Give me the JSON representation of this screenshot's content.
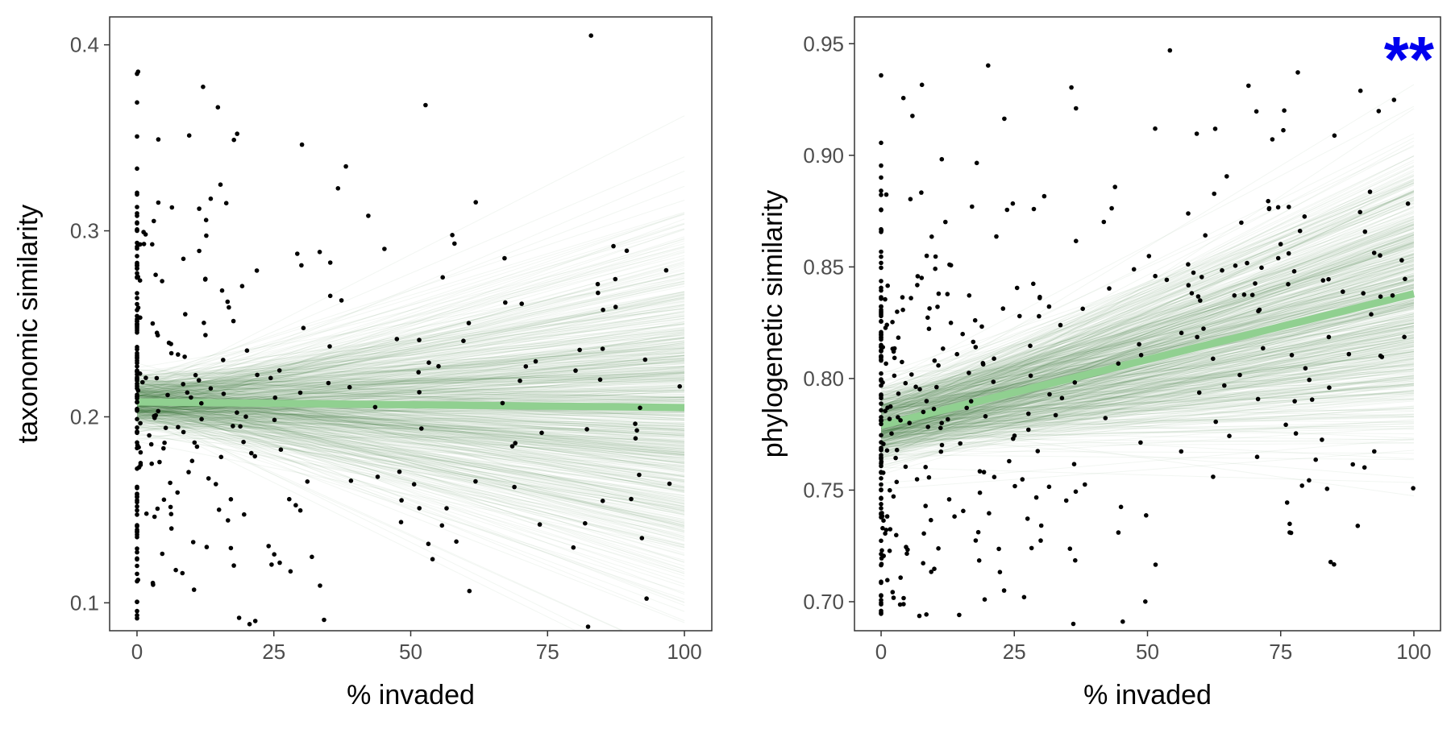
{
  "chart_data": [
    {
      "type": "scatter",
      "xlabel": "% invaded",
      "ylabel": "taxonomic similarity",
      "xlim": [
        -5,
        105
      ],
      "ylim": [
        0.085,
        0.415
      ],
      "xticks": [
        0,
        25,
        50,
        75,
        100
      ],
      "xtick_labels": [
        "0",
        "25",
        "50",
        "75",
        "100"
      ],
      "yticks": [
        0.1,
        0.2,
        0.3,
        0.4
      ],
      "ytick_labels": [
        "0.1",
        "0.2",
        "0.3",
        "0.4"
      ],
      "grid": false,
      "significance": "",
      "fit": {
        "x": [
          0,
          100
        ],
        "y": [
          0.208,
          0.205
        ],
        "color": "#90d090"
      },
      "posterior_lines": {
        "n": 700,
        "intercept_mean": 0.208,
        "intercept_sd": 0.007,
        "slope_mean": -3e-05,
        "slope_sd": 0.00045,
        "color": "#1f6b1f"
      },
      "points": {
        "n": 340,
        "seed": 17,
        "trend": [
          0.208,
          0.205
        ],
        "spread": 0.075,
        "zero_fraction": 0.28,
        "color": "#000000"
      }
    },
    {
      "type": "scatter",
      "xlabel": "% invaded",
      "ylabel": "phylogenetic similarity",
      "xlim": [
        -5,
        105
      ],
      "ylim": [
        0.687,
        0.962
      ],
      "xticks": [
        0,
        25,
        50,
        75,
        100
      ],
      "xtick_labels": [
        "0",
        "25",
        "50",
        "75",
        "100"
      ],
      "yticks": [
        0.7,
        0.75,
        0.8,
        0.85,
        0.9,
        0.95
      ],
      "ytick_labels": [
        "0.70",
        "0.75",
        "0.80",
        "0.85",
        "0.90",
        "0.95"
      ],
      "grid": false,
      "significance": "**",
      "fit": {
        "x": [
          0,
          100
        ],
        "y": [
          0.779,
          0.838
        ],
        "color": "#90d090"
      },
      "posterior_lines": {
        "n": 700,
        "intercept_mean": 0.779,
        "intercept_sd": 0.008,
        "slope_mean": 0.00059,
        "slope_sd": 0.00028,
        "color": "#1f6b1f"
      },
      "points": {
        "n": 420,
        "seed": 29,
        "trend": [
          0.779,
          0.838
        ],
        "spread": 0.06,
        "zero_fraction": 0.22,
        "color": "#000000"
      }
    }
  ]
}
